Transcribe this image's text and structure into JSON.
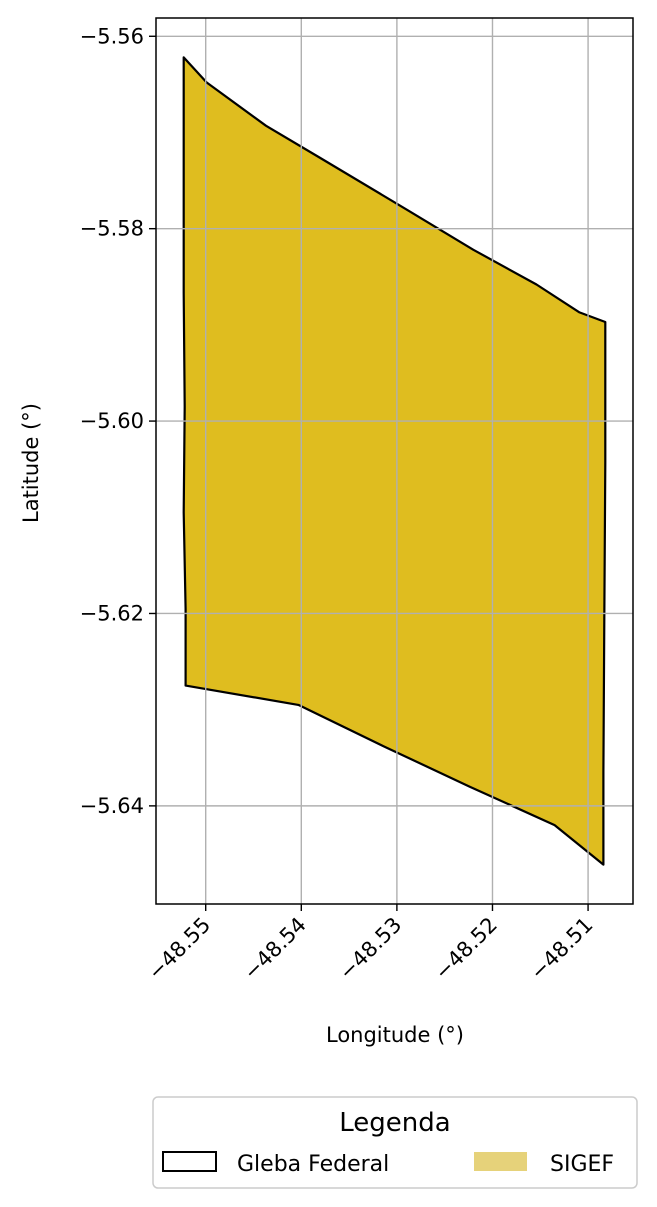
{
  "chart_data": {
    "type": "map",
    "xlabel": "Longitude (°)",
    "ylabel": "Latitude (°)",
    "xlim": [
      -48.5552,
      -48.5053
    ],
    "ylim": [
      -5.6502,
      -5.5581
    ],
    "x_ticks": [
      -48.55,
      -48.54,
      -48.53,
      -48.52,
      -48.51
    ],
    "y_ticks": [
      -5.56,
      -5.58,
      -5.6,
      -5.62,
      -5.64
    ],
    "x_tick_labels": [
      "−48.55",
      "−48.54",
      "−48.53",
      "−48.52",
      "−48.51"
    ],
    "y_tick_labels": [
      "−5.56",
      "−5.58",
      "−5.60",
      "−5.62",
      "−5.64"
    ],
    "x_tick_rotation": 45,
    "grid": true,
    "polygons": [
      {
        "name": "SIGEF",
        "fill": "#dfbd1f",
        "edge": "#000000",
        "coords": [
          [
            -48.5523,
            -5.5622
          ],
          [
            -48.5499,
            -5.5648
          ],
          [
            -48.5437,
            -5.5693
          ],
          [
            -48.5381,
            -5.5726
          ],
          [
            -48.529,
            -5.578
          ],
          [
            -48.522,
            -5.5822
          ],
          [
            -48.5154,
            -5.5858
          ],
          [
            -48.5109,
            -5.5887
          ],
          [
            -48.5082,
            -5.5897
          ],
          [
            -48.5082,
            -5.6043
          ],
          [
            -48.5083,
            -5.6206
          ],
          [
            -48.5084,
            -5.6364
          ],
          [
            -48.5084,
            -5.6461
          ],
          [
            -48.5135,
            -5.642
          ],
          [
            -48.5224,
            -5.638
          ],
          [
            -48.5314,
            -5.6338
          ],
          [
            -48.5403,
            -5.6295
          ],
          [
            -48.5521,
            -5.6275
          ],
          [
            -48.5521,
            -5.6195
          ],
          [
            -48.5523,
            -5.6095
          ],
          [
            -48.5522,
            -5.5985
          ],
          [
            -48.5523,
            -5.5867
          ],
          [
            -48.5523,
            -5.5622
          ]
        ]
      }
    ],
    "legend": {
      "title": "Legenda",
      "placement": "bottom-center, below the plot",
      "entries": [
        {
          "label": "Gleba Federal",
          "style": "outline",
          "color": "#000000"
        },
        {
          "label": "SIGEF",
          "style": "filled",
          "color": "#e6d27a"
        }
      ]
    }
  }
}
